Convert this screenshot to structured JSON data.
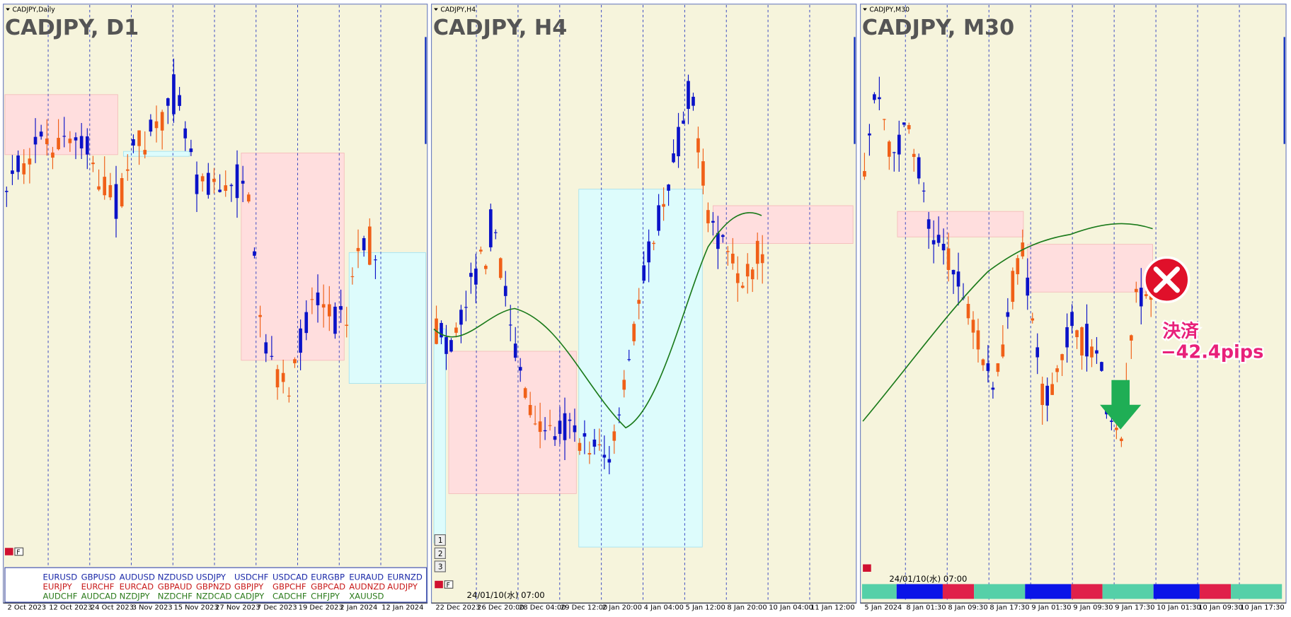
{
  "panels": [
    {
      "caption": "CADJPY,Daily",
      "title": "CADJPY, D1",
      "button": "F",
      "x_labels": [
        "2 Oct 2023",
        "12 Oct 2023",
        "24 Oct 2023",
        "3 Nov 2023",
        "15 Nov 2023",
        "27 Nov 2023",
        "7 Dec 2023",
        "19 Dec 2023",
        "2 Jan 2024",
        "12 Jan 2024"
      ],
      "symbols": [
        [
          "EURUSD",
          "GBPUSD",
          "AUDUSD",
          "NZDUSD",
          "USDJPY",
          "USDCHF",
          "USDCAD",
          "EURGBP",
          "EURAUD",
          "EURNZD"
        ],
        [
          "EURJPY",
          "EURCHF",
          "EURCAD",
          "GBPAUD",
          "GBPNZD",
          "GBPJPY",
          "GBPCHF",
          "GBPCAD",
          "AUDNZD",
          "AUDJPY"
        ],
        [
          "AUDCHF",
          "AUDCAD",
          "NZDJPY",
          "NZDCHF",
          "NZDCAD",
          "CADJPY",
          "CADCHF",
          "CHFJPY",
          "XAUUSD"
        ]
      ]
    },
    {
      "caption": "CADJPY,H4",
      "title": "CADJPY, H4",
      "button": "F",
      "tabs": [
        "1",
        "2",
        "3"
      ],
      "timestamp": "24/01/10(水) 07:00",
      "x_labels": [
        "22 Dec 2023",
        "26 Dec 20:00",
        "28 Dec 04:00",
        "29 Dec 12:00",
        "2 Jan 20:00",
        "4 Jan 04:00",
        "5 Jan 12:00",
        "8 Jan 20:00",
        "10 Jan 04:00",
        "11 Jan 12:00"
      ]
    },
    {
      "caption": "CADJPY,M30",
      "title": "CADJPY, M30",
      "timestamp": "24/01/10(水) 07:00",
      "x_labels": [
        "5 Jan 2024",
        "8 Jan 01:30",
        "8 Jan 09:30",
        "8 Jan 17:30",
        "9 Jan 01:30",
        "9 Jan 09:30",
        "9 Jan 17:30",
        "10 Jan 01:30",
        "10 Jan 09:30",
        "10 Jan 17:30"
      ],
      "annotation": {
        "line1": "決済",
        "line2": "−42.4pips"
      }
    }
  ]
}
